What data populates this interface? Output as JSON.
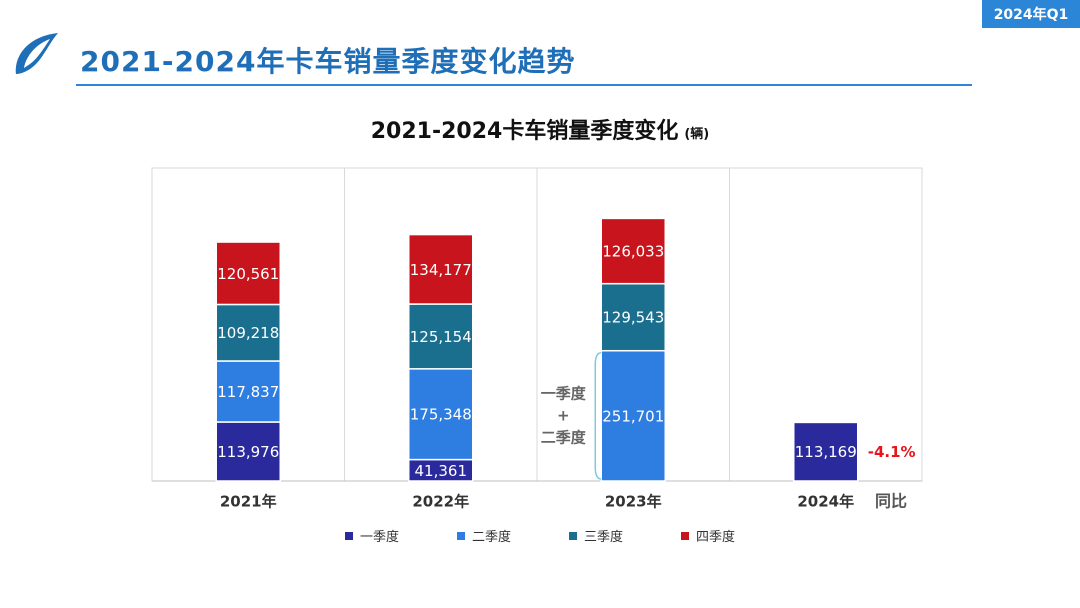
{
  "header": {
    "period_tag": "2024年Q1",
    "page_title": "2021-2024年卡车销量季度变化趋势"
  },
  "colors": {
    "q1": "#2a2a9c",
    "q2": "#2e7de0",
    "q3": "#1a6f8e",
    "q4": "#c8141c",
    "accent": "#2b86d8",
    "negative": "#e8141c"
  },
  "chart_data": {
    "type": "bar",
    "stacked": true,
    "title": "2021-2024卡车销量季度变化",
    "unit": "(辆)",
    "categories": [
      "2021年",
      "2022年",
      "2023年",
      "2024年"
    ],
    "series": [
      {
        "name": "一季度",
        "values": [
          113976,
          41361,
          null,
          113169
        ]
      },
      {
        "name": "二季度",
        "values": [
          117837,
          175348,
          251701,
          null
        ]
      },
      {
        "name": "三季度",
        "values": [
          109218,
          125154,
          129543,
          null
        ]
      },
      {
        "name": "四季度",
        "values": [
          120561,
          134177,
          126033,
          null
        ]
      }
    ],
    "bar_labels": [
      [
        "113,976",
        "117,837",
        "109,218",
        "120,561"
      ],
      [
        "41,361",
        "175,348",
        "125,154",
        "134,177"
      ],
      [
        "",
        "251,701",
        "129,543",
        "126,033"
      ],
      [
        "113,169",
        "",
        "",
        ""
      ]
    ],
    "annotation_2023": {
      "line1": "一季度",
      "line2": "+",
      "line3": "二季度"
    },
    "yoy": {
      "label": "同比",
      "value": "-4.1%"
    },
    "legend": [
      "一季度",
      "二季度",
      "三季度",
      "四季度"
    ]
  }
}
